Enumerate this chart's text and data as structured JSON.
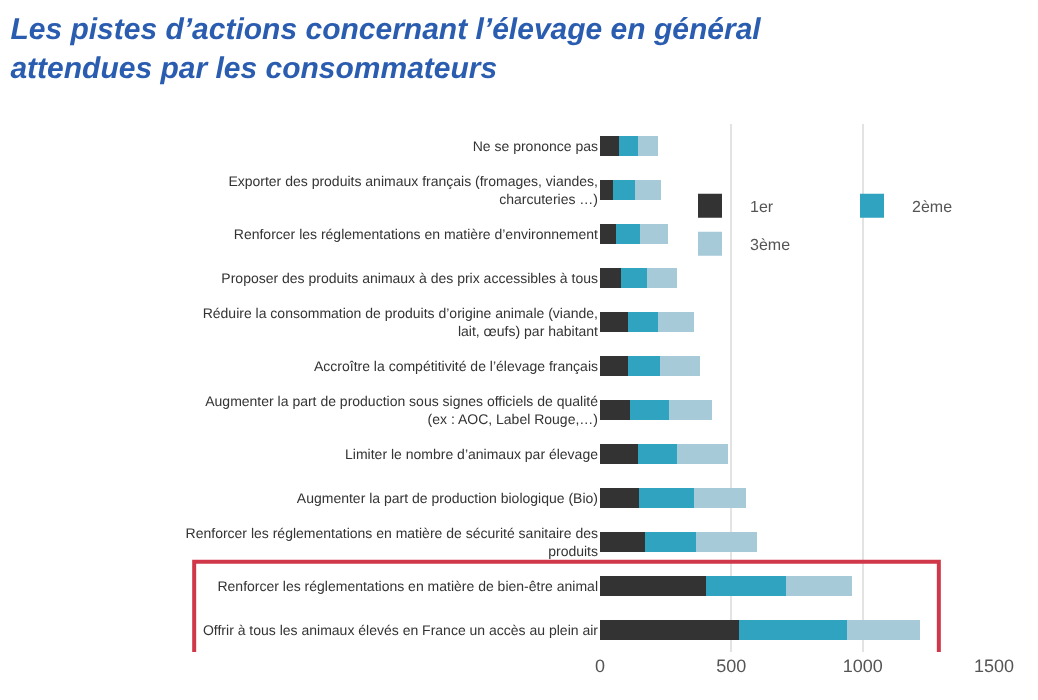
{
  "chart_data": {
    "type": "bar",
    "orientation": "horizontal",
    "stacked": true,
    "title": "Les pistes d’actions concernant l’élevage en général attendues par les consommateurs",
    "categories": [
      "Ne se prononce pas",
      "Exporter des produits animaux français (fromages, viandes, charcuteries …)",
      "Renforcer les réglementations en matière d’environnement",
      "Proposer des produits animaux à des prix accessibles à tous",
      "Réduire la consommation de produits d’origine animale (viande, lait, œufs) par habitant",
      "Accroître la compétitivité de l’élevage français",
      "Augmenter la part de production sous signes officiels de qualité (ex : AOC, Label Rouge,…)",
      "Limiter le nombre d’animaux par élevage",
      "Augmenter la part de production biologique (Bio)",
      "Renforcer les réglementations en matière de sécurité sanitaire des produits",
      "Renforcer les réglementations en matière de bien-être animal",
      "Offrir à tous les animaux élevés en France un accès au plein air"
    ],
    "series": [
      {
        "name": "1er",
        "color": "#333333",
        "values": [
          71,
          49,
          59,
          81,
          106,
          108,
          113,
          145,
          148,
          170,
          403,
          529
        ]
      },
      {
        "name": "2ème",
        "color": "#2fa3c0",
        "values": [
          74,
          84,
          93,
          98,
          113,
          121,
          148,
          148,
          209,
          197,
          305,
          413
        ]
      },
      {
        "name": "3ème",
        "color": "#a7cad9",
        "values": [
          76,
          101,
          106,
          113,
          138,
          153,
          167,
          194,
          199,
          231,
          251,
          278
        ]
      }
    ],
    "xlim": [
      0,
      1500
    ],
    "xticks": [
      0,
      500,
      1000,
      1500
    ],
    "grid": "x",
    "legend": "top right"
  }
}
